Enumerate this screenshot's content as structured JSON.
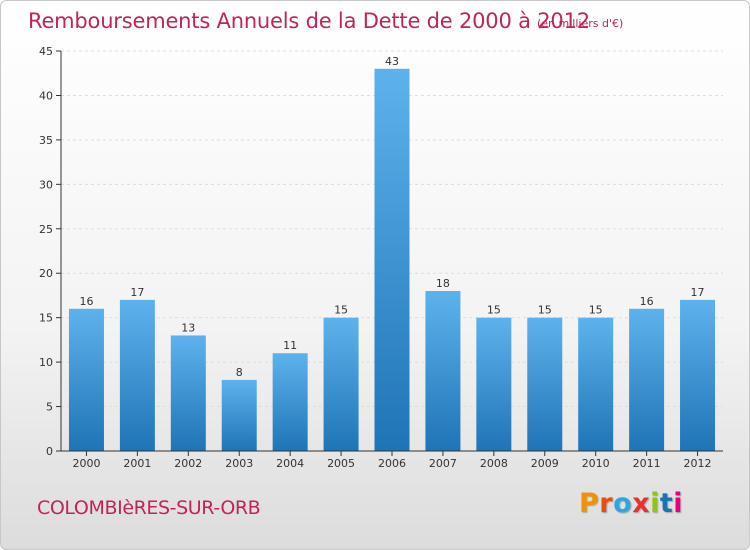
{
  "header": {
    "title": "Remboursements Annuels de la Dette de 2000 à 2012",
    "subtitle": "(en milliers d'€)"
  },
  "footer": {
    "commune": "COLOMBIèRES-SUR-ORB",
    "brand": "Proxiti",
    "brand_colors": [
      "#f39200",
      "#e84e0f",
      "#2aa8e0",
      "#e7332e",
      "#95c11f",
      "#1d71b8",
      "#e6007e"
    ]
  },
  "colors": {
    "title": "#c0245a",
    "bar_top": "#5eb2ec",
    "bar_bottom": "#1f74b6",
    "grid": "#dddddd",
    "axis": "#333333"
  },
  "chart_data": {
    "type": "bar",
    "title": "Remboursements Annuels de la Dette de 2000 à 2012",
    "subtitle": "(en milliers d'€)",
    "xlabel": "",
    "ylabel": "",
    "categories": [
      "2000",
      "2001",
      "2002",
      "2003",
      "2004",
      "2005",
      "2006",
      "2007",
      "2008",
      "2009",
      "2010",
      "2011",
      "2012"
    ],
    "values": [
      16,
      17,
      13,
      8,
      11,
      15,
      43,
      18,
      15,
      15,
      15,
      16,
      17
    ],
    "value_labels": [
      "16",
      "17",
      "13",
      "8",
      "11",
      "15",
      "43",
      "18",
      "15",
      "15",
      "15",
      "16",
      "17"
    ],
    "ylim": [
      0,
      45
    ],
    "yticks": [
      "0",
      "5",
      "10",
      "15",
      "20",
      "25",
      "30",
      "35",
      "40",
      "45"
    ],
    "grid": true,
    "legend": "none"
  }
}
